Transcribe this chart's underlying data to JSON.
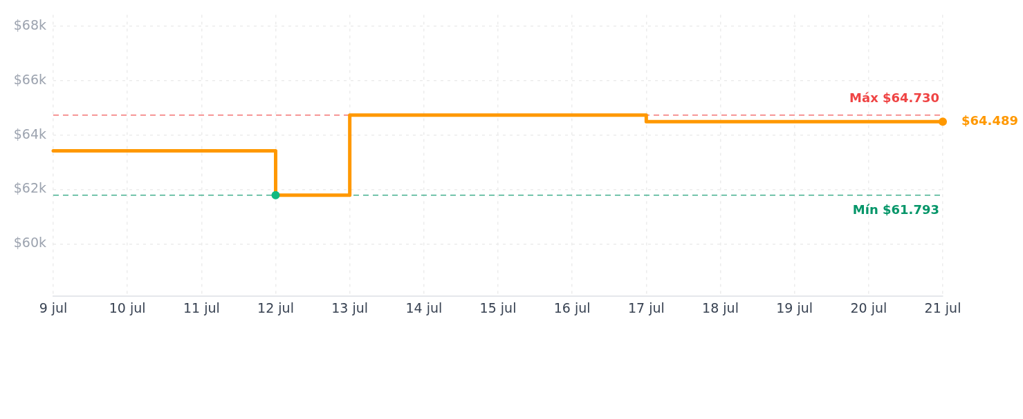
{
  "chart_data": {
    "type": "step",
    "x": [
      "--07-09",
      "--07-12",
      "--07-13",
      "--07-17",
      "--07-21"
    ],
    "series": [
      {
        "color": "#ff9800",
        "values": [
          63420,
          61793,
          64730,
          64489,
          64489
        ]
      },
      {
        "type": "scatter",
        "marker": "circle",
        "x": [
          "--07-12"
        ],
        "values": [
          61793
        ],
        "color": "#10b981"
      },
      {
        "type": "scatter",
        "marker": "circle",
        "x": [
          "--07-21"
        ],
        "values": [
          64489
        ],
        "color": "#ff9800",
        "value_labels": [
          "$64.489"
        ]
      }
    ],
    "xlim": [
      "--07-09",
      "--07-21"
    ],
    "xticks": [
      {
        "value": "--07-09",
        "label": "9 jul"
      },
      {
        "value": "--07-10",
        "label": "10 jul"
      },
      {
        "value": "--07-11",
        "label": "11 jul"
      },
      {
        "value": "--07-12",
        "label": "12 jul"
      },
      {
        "value": "--07-13",
        "label": "13 jul"
      },
      {
        "value": "--07-14",
        "label": "14 jul"
      },
      {
        "value": "--07-15",
        "label": "15 jul"
      },
      {
        "value": "--07-16",
        "label": "16 jul"
      },
      {
        "value": "--07-17",
        "label": "17 jul"
      },
      {
        "value": "--07-18",
        "label": "18 jul"
      },
      {
        "value": "--07-19",
        "label": "19 jul"
      },
      {
        "value": "--07-20",
        "label": "20 jul"
      },
      {
        "value": "--07-21",
        "label": "21 jul"
      }
    ],
    "ylim": [
      58080,
      68420
    ],
    "yticks": [
      {
        "value": 60000,
        "label": "$60k"
      },
      {
        "value": 62000,
        "label": "$62k"
      },
      {
        "value": 64000,
        "label": "$64k"
      },
      {
        "value": 66000,
        "label": "$66k"
      },
      {
        "value": 68000,
        "label": "$68k"
      }
    ],
    "ref_lines": [
      {
        "axis": "y",
        "value": 64730,
        "label": "Máx $64.730",
        "color": "#ef4444",
        "line_style": "dashed"
      },
      {
        "axis": "y",
        "value": 61793,
        "label": "Mín $61.793",
        "color": "#059669",
        "line_style": "dashed"
      }
    ],
    "grid": true
  }
}
